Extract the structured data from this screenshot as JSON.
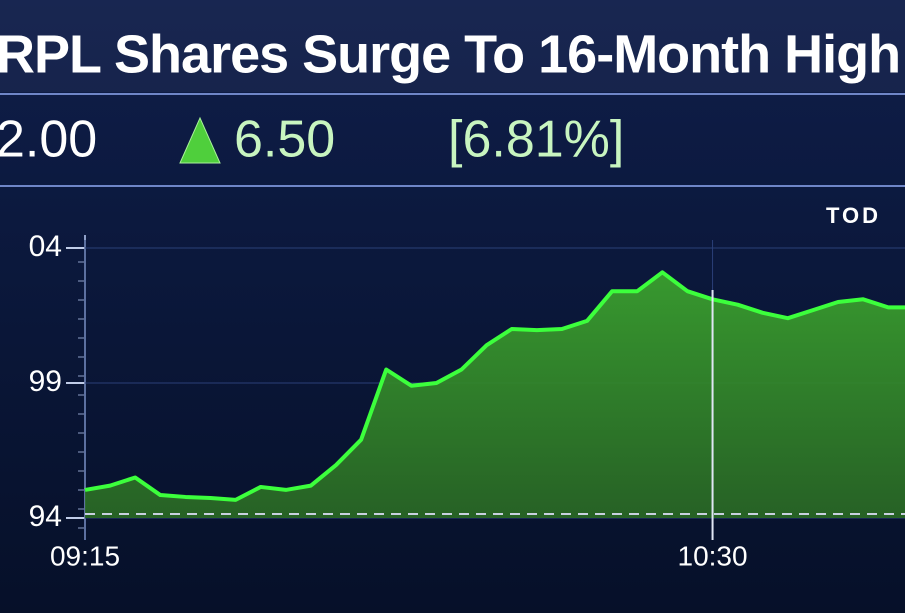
{
  "chart_data": {
    "type": "area",
    "title": "RPL Shares Surge To 16-Month High",
    "price": "2.00",
    "change": "6.50",
    "change_percent": "[6.81%]",
    "period_label": "TOD",
    "x": [
      "09:15",
      "09:18",
      "09:21",
      "09:24",
      "09:27",
      "09:30",
      "09:33",
      "09:36",
      "09:39",
      "09:42",
      "09:45",
      "09:48",
      "09:51",
      "09:54",
      "09:57",
      "10:00",
      "10:03",
      "10:06",
      "10:09",
      "10:12",
      "10:15",
      "10:18",
      "10:21",
      "10:24",
      "10:27",
      "10:30",
      "10:33",
      "10:36",
      "10:39",
      "10:42",
      "10:45",
      "10:48",
      "10:51",
      "10:53"
    ],
    "series": [
      {
        "color": "#3cff3c",
        "values": [
          95.04,
          95.2,
          95.5,
          94.85,
          94.78,
          94.74,
          94.67,
          95.15,
          95.04,
          95.2,
          95.96,
          96.9,
          99.5,
          98.9,
          99.0,
          99.5,
          100.4,
          101.0,
          100.96,
          101.0,
          101.3,
          102.4,
          102.4,
          103.1,
          102.4,
          102.1,
          101.9,
          101.6,
          101.4,
          101.7,
          102.0,
          102.1,
          101.8,
          101.8
        ]
      }
    ],
    "xlim": [
      "09:15",
      "10:53"
    ],
    "xticks": [
      "09:15",
      "10:30"
    ],
    "ylim": [
      94,
      104
    ],
    "yticks": [
      {
        "value": 104,
        "label": "04"
      },
      99,
      94
    ],
    "reference_line": 94.15,
    "grid": true
  }
}
